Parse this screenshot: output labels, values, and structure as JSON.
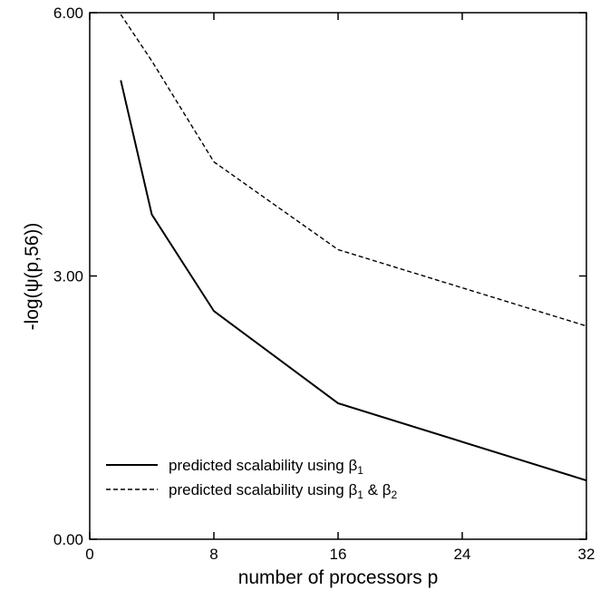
{
  "chart_data": {
    "type": "line",
    "title": "",
    "xlabel": "number of processors p",
    "ylabel": "-log(ψ(p,56))",
    "xlim": [
      0,
      32
    ],
    "ylim": [
      0,
      6
    ],
    "x_ticks": [
      0,
      8,
      16,
      24,
      32
    ],
    "x_tick_labels": [
      "0",
      "8",
      "16",
      "24",
      "32"
    ],
    "y_ticks": [
      0,
      3,
      6
    ],
    "y_tick_labels": [
      "0.00",
      "3.00",
      "6.00"
    ],
    "grid": false,
    "legend_position": "bottom-left",
    "series": [
      {
        "name": "predicted scalability using β1",
        "legend_main": "predicted scalability using β",
        "legend_sub": "1",
        "legend_tail": "",
        "style": "solid",
        "color": "#000000",
        "x": [
          2,
          4,
          8,
          16,
          32
        ],
        "y": [
          5.23,
          3.7,
          2.6,
          1.55,
          0.67
        ]
      },
      {
        "name": "predicted scalability using β1 & β2",
        "legend_main": "predicted scalability using β",
        "legend_sub": "1",
        "legend_tail": " & β",
        "legend_sub2": "2",
        "style": "dashed",
        "color": "#000000",
        "x": [
          2,
          4,
          8,
          16,
          32
        ],
        "y": [
          5.98,
          5.45,
          4.3,
          3.3,
          2.43
        ]
      }
    ]
  }
}
